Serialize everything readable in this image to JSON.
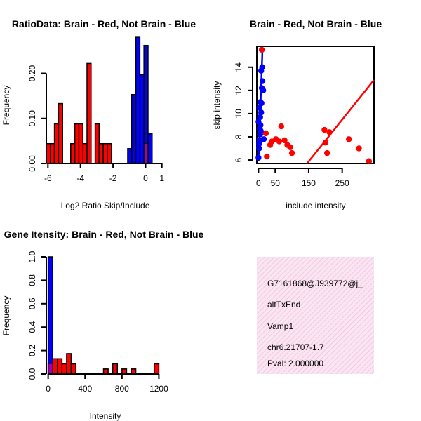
{
  "colors": {
    "brain": "#ff0000",
    "not_brain": "#0000ff",
    "overlap": "#9900cc",
    "line_brain": "#ff0000",
    "line_not_brain": "#0000ff",
    "info_bg": "#fbe5f3",
    "info_hatch": "#ecc0dc",
    "pval": "#990000"
  },
  "chart_data": [
    {
      "type": "bar",
      "title": "RatioData: Brain - Red, Not Brain - Blue",
      "xlabel": "Log2 Ratio Skip/Include",
      "ylabel": "Frequency",
      "xlim": [
        -6.1,
        1.1
      ],
      "ylim": [
        0,
        0.26
      ],
      "x_ticks": [
        -6,
        -4,
        -2,
        0,
        1
      ],
      "y_ticks": [
        0.0,
        0.1,
        0.2
      ],
      "y_tick_labels": [
        "0.00",
        "0.10",
        "0.20"
      ],
      "bin_width": 0.25,
      "series": [
        {
          "name": "Brain",
          "color_key": "brain",
          "bins": [
            [
              -6.1,
              0.044
            ],
            [
              -5.85,
              0.044
            ],
            [
              -5.6,
              0.088
            ],
            [
              -5.35,
              0.133
            ],
            [
              -4.6,
              0.044
            ],
            [
              -4.35,
              0.088
            ],
            [
              -4.1,
              0.088
            ],
            [
              -3.85,
              0.044
            ],
            [
              -3.6,
              0.222
            ],
            [
              -3.1,
              0.088
            ],
            [
              -2.85,
              0.044
            ],
            [
              -2.6,
              0.044
            ],
            [
              -2.35,
              0.044
            ],
            [
              -0.1,
              0.044
            ]
          ]
        },
        {
          "name": "Not Brain",
          "color_key": "not_brain",
          "bins": [
            [
              -1.1,
              0.033
            ],
            [
              -0.85,
              0.153
            ],
            [
              -0.6,
              0.28
            ],
            [
              -0.35,
              0.197
            ],
            [
              -0.1,
              0.262
            ],
            [
              0.15,
              0.066
            ]
          ]
        }
      ]
    },
    {
      "type": "scatter",
      "title": "Brain - Red, Not Brain - Blue",
      "xlabel": "include intensity",
      "ylabel": "skip intensity",
      "xlim": [
        -5,
        345
      ],
      "ylim": [
        5.7,
        15.8
      ],
      "x_ticks": [
        0,
        50,
        150,
        250
      ],
      "x_tick_labels": [
        "0",
        "50",
        "150",
        "250"
      ],
      "y_ticks": [
        6,
        8,
        10,
        12,
        14
      ],
      "series": [
        {
          "name": "Brain",
          "color_key": "brain",
          "points": [
            [
              10,
              15.5
            ],
            [
              22,
              8.3
            ],
            [
              25,
              6.3
            ],
            [
              52,
              7.8
            ],
            [
              62,
              7.6
            ],
            [
              68,
              8.9
            ],
            [
              78,
              7.7
            ],
            [
              86,
              7.3
            ],
            [
              95,
              7.1
            ],
            [
              100,
              6.6
            ],
            [
              197,
              8.6
            ],
            [
              200,
              7.5
            ],
            [
              212,
              8.4
            ],
            [
              205,
              6.6
            ],
            [
              270,
              7.8
            ],
            [
              300,
              7.0
            ],
            [
              330,
              5.9
            ],
            [
              35,
              7.3
            ],
            [
              40,
              7.6
            ]
          ],
          "fit_line": [
            [
              145,
              5.7
            ],
            [
              345,
              12.9
            ]
          ]
        },
        {
          "name": "Not Brain",
          "color_key": "not_brain",
          "points": [
            [
              0,
              6.2
            ],
            [
              2,
              7.0
            ],
            [
              3,
              7.7
            ],
            [
              5,
              8.2
            ],
            [
              4,
              8.7
            ],
            [
              6,
              9.0
            ],
            [
              5,
              9.7
            ],
            [
              8,
              10.1
            ],
            [
              3,
              10.5
            ],
            [
              6,
              11.0
            ],
            [
              10,
              12.2
            ],
            [
              12,
              12.8
            ],
            [
              8,
              13.7
            ],
            [
              11,
              14.0
            ],
            [
              14,
              12.0
            ],
            [
              2,
              7.4
            ],
            [
              7,
              8.5
            ],
            [
              16,
              7.8
            ],
            [
              0,
              9.3
            ],
            [
              9,
              10.9
            ]
          ],
          "fit_line": [
            [
              0,
              5.9
            ],
            [
              12,
              15.6
            ]
          ]
        }
      ]
    },
    {
      "type": "bar",
      "title": "Gene Itensity: Brain - Red, Not Brain - Blue",
      "xlabel": "Intensity",
      "ylabel": "Frequency",
      "xlim": [
        -20,
        1250
      ],
      "ylim": [
        0,
        1.0
      ],
      "x_ticks": [
        0,
        400,
        800,
        1200
      ],
      "y_ticks": [
        0.0,
        0.2,
        0.4,
        0.6,
        0.8,
        1.0
      ],
      "y_tick_labels": [
        "0.0",
        "0.2",
        "0.4",
        "0.6",
        "0.8",
        "1.0"
      ],
      "bin_width": 50,
      "series": [
        {
          "name": "Brain",
          "color_key": "brain",
          "bins": [
            [
              0,
              0.087
            ],
            [
              50,
              0.13
            ],
            [
              100,
              0.13
            ],
            [
              150,
              0.087
            ],
            [
              200,
              0.174
            ],
            [
              250,
              0.087
            ],
            [
              600,
              0.043
            ],
            [
              700,
              0.087
            ],
            [
              800,
              0.043
            ],
            [
              900,
              0.043
            ],
            [
              1150,
              0.087
            ]
          ]
        },
        {
          "name": "Not Brain",
          "color_key": "not_brain",
          "bins": [
            [
              0,
              1.0
            ]
          ]
        }
      ]
    }
  ],
  "info_panel": {
    "probe_id": "G7161868@J939772@j_",
    "event_type": "altTxEnd",
    "gene": "Vamp1",
    "location": "chr6.21707-1.7",
    "pval": "Pval: 2.000000"
  }
}
